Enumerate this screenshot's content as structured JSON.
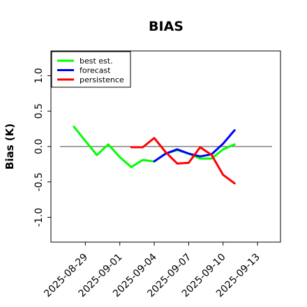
{
  "chart_data": {
    "type": "line",
    "title": "BIAS",
    "xlabel": "",
    "ylabel": "Bias (K)",
    "x_range": [
      "2025-08-26",
      "2025-09-15"
    ],
    "ylim": [
      -1.35,
      1.35
    ],
    "y_ticks": [
      -1.0,
      -0.5,
      0.0,
      0.5,
      1.0
    ],
    "y_tick_labels": [
      "-1.0",
      "-0.5",
      "0.0",
      "0.5",
      "1.0"
    ],
    "x_ticks": [
      "2025-08-29",
      "2025-09-01",
      "2025-09-04",
      "2025-09-07",
      "2025-09-10",
      "2025-09-13"
    ],
    "x_tick_labels": [
      "2025-08-29",
      "2025-09-01",
      "2025-09-04",
      "2025-09-07",
      "2025-09-10",
      "2025-09-13"
    ],
    "highlighted_tick": "2025-09-04",
    "highlight_color": "#1a7f1a",
    "zero_line": true,
    "grid": false,
    "legend_position": "top-left",
    "series": [
      {
        "name": "best est.",
        "color": "#00ff00",
        "points": [
          {
            "x": "2025-08-28",
            "y": 0.28
          },
          {
            "x": "2025-08-30",
            "y": -0.12
          },
          {
            "x": "2025-08-31",
            "y": 0.03
          },
          {
            "x": "2025-09-01",
            "y": -0.15
          },
          {
            "x": "2025-09-02",
            "y": -0.29
          },
          {
            "x": "2025-09-03",
            "y": -0.19
          },
          {
            "x": "2025-09-04",
            "y": -0.21
          },
          {
            "x": "2025-09-05",
            "y": -0.1
          },
          {
            "x": "2025-09-06",
            "y": -0.05
          },
          {
            "x": "2025-09-07",
            "y": -0.1
          },
          {
            "x": "2025-09-08",
            "y": -0.17
          },
          {
            "x": "2025-09-09",
            "y": -0.17
          },
          {
            "x": "2025-09-10",
            "y": -0.04
          },
          {
            "x": "2025-09-11",
            "y": 0.03
          }
        ]
      },
      {
        "name": "forecast",
        "color": "#0000ff",
        "points": [
          {
            "x": "2025-09-04",
            "y": -0.21
          },
          {
            "x": "2025-09-05",
            "y": -0.1
          },
          {
            "x": "2025-09-06",
            "y": -0.04
          },
          {
            "x": "2025-09-07",
            "y": -0.1
          },
          {
            "x": "2025-09-08",
            "y": -0.14
          },
          {
            "x": "2025-09-09",
            "y": -0.11
          },
          {
            "x": "2025-09-10",
            "y": 0.04
          },
          {
            "x": "2025-09-11",
            "y": 0.23
          }
        ]
      },
      {
        "name": "persistence",
        "color": "#ff0000",
        "points": [
          {
            "x": "2025-09-02",
            "y": -0.01
          },
          {
            "x": "2025-09-03",
            "y": -0.01
          },
          {
            "x": "2025-09-04",
            "y": 0.12
          },
          {
            "x": "2025-09-05",
            "y": -0.08
          },
          {
            "x": "2025-09-06",
            "y": -0.24
          },
          {
            "x": "2025-09-07",
            "y": -0.23
          },
          {
            "x": "2025-09-08",
            "y": -0.01
          },
          {
            "x": "2025-09-09",
            "y": -0.12
          },
          {
            "x": "2025-09-10",
            "y": -0.4
          },
          {
            "x": "2025-09-11",
            "y": -0.52
          }
        ]
      }
    ]
  }
}
